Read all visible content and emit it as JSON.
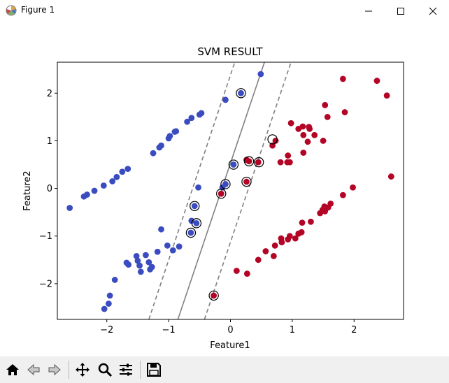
{
  "window": {
    "title": "Figure 1",
    "icons": [
      "matplotlib-logo-icon",
      "minimize-icon",
      "maximize-icon",
      "close-icon"
    ]
  },
  "toolbar": {
    "buttons": [
      "home-icon",
      "back-arrow-icon",
      "forward-arrow-icon",
      "pan-move-icon",
      "zoom-magnifier-icon",
      "configure-subplots-icon",
      "save-disk-icon"
    ]
  },
  "colors": {
    "class0": "#3b4cc0",
    "class1": "#b40426",
    "boundary": "#808080",
    "support_vector_ring": "#000000"
  },
  "chart_data": {
    "type": "scatter",
    "title": "SVM RESULT",
    "xlabel": "Feature1",
    "ylabel": "Feature2",
    "xlim": [
      -2.8,
      2.8
    ],
    "ylim": [
      -2.75,
      2.65
    ],
    "xticks": [
      -2,
      -1,
      0,
      1,
      2
    ],
    "yticks": [
      -2,
      -1,
      0,
      1,
      2
    ],
    "grid": false,
    "series": [
      {
        "color": "#3b4cc0",
        "points": [
          [
            -2.6,
            -0.41
          ],
          [
            -2.37,
            -0.17
          ],
          [
            -2.32,
            -0.13
          ],
          [
            -2.2,
            -0.05
          ],
          [
            -2.05,
            0.06
          ],
          [
            -1.91,
            0.15
          ],
          [
            -1.84,
            0.24
          ],
          [
            -1.75,
            0.35
          ],
          [
            -1.66,
            0.41
          ],
          [
            -1.25,
            0.74
          ],
          [
            -1.15,
            0.86
          ],
          [
            -1.12,
            0.9
          ],
          [
            -1.0,
            1.05
          ],
          [
            -0.98,
            1.1
          ],
          [
            -0.9,
            1.19
          ],
          [
            -0.88,
            1.2
          ],
          [
            -0.7,
            1.4
          ],
          [
            -0.63,
            1.48
          ],
          [
            -0.5,
            1.55
          ],
          [
            -0.47,
            1.58
          ],
          [
            -0.08,
            1.86
          ],
          [
            0.17,
            2.0
          ],
          [
            0.49,
            2.4
          ],
          [
            -0.13,
            0.02
          ],
          [
            -0.52,
            0.02
          ],
          [
            0.05,
            0.5
          ],
          [
            -0.08,
            0.09
          ],
          [
            -0.64,
            -0.93
          ],
          [
            -0.58,
            -0.37
          ],
          [
            -0.55,
            -0.73
          ],
          [
            -0.63,
            -0.68
          ],
          [
            -1.12,
            -0.86
          ],
          [
            -1.02,
            -1.2
          ],
          [
            -0.93,
            -1.3
          ],
          [
            -0.83,
            -1.22
          ],
          [
            -1.18,
            -1.33
          ],
          [
            -1.37,
            -1.4
          ],
          [
            -1.32,
            -1.55
          ],
          [
            -1.3,
            -1.7
          ],
          [
            -1.27,
            -1.65
          ],
          [
            -1.52,
            -1.42
          ],
          [
            -1.5,
            -1.52
          ],
          [
            -1.47,
            -1.62
          ],
          [
            -1.45,
            -1.75
          ],
          [
            -1.68,
            -1.56
          ],
          [
            -1.65,
            -1.6
          ],
          [
            -1.87,
            -1.92
          ],
          [
            -1.95,
            -2.25
          ],
          [
            -1.97,
            -2.42
          ],
          [
            -2.04,
            -2.53
          ]
        ]
      },
      {
        "color": "#b40426",
        "points": [
          [
            1.82,
            2.3
          ],
          [
            2.37,
            2.26
          ],
          [
            2.53,
            1.95
          ],
          [
            1.53,
            1.75
          ],
          [
            1.85,
            1.6
          ],
          [
            1.57,
            1.5
          ],
          [
            0.98,
            1.37
          ],
          [
            1.17,
            1.3
          ],
          [
            1.27,
            1.29
          ],
          [
            1.28,
            1.25
          ],
          [
            1.1,
            1.25
          ],
          [
            1.18,
            1.12
          ],
          [
            1.36,
            1.12
          ],
          [
            1.5,
            1.0
          ],
          [
            0.73,
            1.0
          ],
          [
            1.25,
            0.98
          ],
          [
            0.68,
            0.9
          ],
          [
            0.93,
            0.69
          ],
          [
            1.18,
            0.75
          ],
          [
            0.26,
            0.6
          ],
          [
            0.3,
            0.57
          ],
          [
            0.92,
            0.55
          ],
          [
            0.96,
            0.55
          ],
          [
            0.81,
            0.55
          ],
          [
            0.45,
            0.55
          ],
          [
            2.6,
            0.25
          ],
          [
            0.26,
            0.14
          ],
          [
            -0.15,
            -0.11
          ],
          [
            1.98,
            0.02
          ],
          [
            1.82,
            -0.14
          ],
          [
            1.62,
            -0.32
          ],
          [
            1.58,
            -0.4
          ],
          [
            1.52,
            -0.38
          ],
          [
            1.49,
            -0.45
          ],
          [
            1.53,
            -0.48
          ],
          [
            1.45,
            -0.52
          ],
          [
            1.3,
            -0.7
          ],
          [
            1.16,
            -0.72
          ],
          [
            1.15,
            -0.92
          ],
          [
            1.1,
            -0.95
          ],
          [
            1.05,
            -1.05
          ],
          [
            0.96,
            -1.0
          ],
          [
            0.93,
            -1.07
          ],
          [
            0.82,
            -1.05
          ],
          [
            0.83,
            -1.13
          ],
          [
            0.72,
            -1.2
          ],
          [
            0.57,
            -1.32
          ],
          [
            0.7,
            -1.42
          ],
          [
            0.45,
            -1.5
          ],
          [
            0.1,
            -1.73
          ],
          [
            0.27,
            -1.79
          ],
          [
            -0.27,
            -2.25
          ]
        ]
      }
    ],
    "support_vectors": [
      [
        0.17,
        2.0
      ],
      [
        0.05,
        0.5
      ],
      [
        -0.08,
        0.09
      ],
      [
        -0.58,
        -0.37
      ],
      [
        -0.55,
        -0.73
      ],
      [
        -0.64,
        -0.93
      ],
      [
        0.68,
        1.03
      ],
      [
        0.3,
        0.57
      ],
      [
        0.46,
        0.55
      ],
      [
        0.26,
        0.14
      ],
      [
        -0.15,
        -0.11
      ],
      [
        -0.27,
        -2.25
      ]
    ],
    "decision_boundary": [
      [
        -0.85,
        -2.75
      ],
      [
        0.55,
        2.65
      ]
    ],
    "margins": [
      {
        "style": "dashed",
        "line": [
          [
            -1.32,
            -2.75
          ],
          [
            0.07,
            2.65
          ]
        ]
      },
      {
        "style": "dashed",
        "line": [
          [
            -0.42,
            -2.75
          ],
          [
            0.98,
            2.65
          ]
        ]
      }
    ]
  }
}
